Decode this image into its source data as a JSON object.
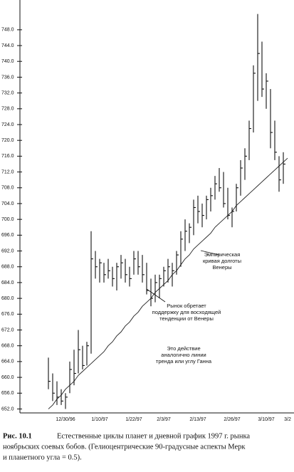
{
  "chart_data": {
    "type": "ohlc",
    "categories": [
      null,
      null,
      null,
      null,
      "12/30/96",
      null,
      null,
      null,
      null,
      null,
      null,
      null,
      "1/10/97",
      null,
      null,
      null,
      null,
      null,
      null,
      null,
      "1/22/97",
      null,
      null,
      null,
      null,
      null,
      null,
      "2/3/97",
      null,
      null,
      null,
      null,
      null,
      null,
      null,
      "2/13/97",
      null,
      null,
      null,
      null,
      null,
      null,
      null,
      "2/26/97",
      null,
      null,
      null,
      null,
      null,
      null,
      null,
      "3/10/97",
      null,
      null,
      null,
      null,
      "3/2"
    ],
    "high": [
      665,
      661,
      659,
      657,
      656,
      664,
      667,
      672,
      668,
      669,
      697,
      692,
      690,
      689,
      690,
      688,
      689,
      691,
      690,
      688,
      692,
      692,
      691,
      689,
      685,
      686,
      686,
      688,
      690,
      689,
      692,
      697,
      700,
      699,
      705,
      706,
      704,
      706,
      708,
      711,
      713,
      712,
      708,
      703,
      709,
      715,
      718,
      725,
      739,
      752,
      745,
      737,
      733,
      725,
      716,
      717,
      null
    ],
    "low": [
      657,
      654,
      653,
      653,
      652,
      656,
      658,
      661,
      662,
      663,
      666,
      685,
      684,
      684,
      685,
      683,
      682,
      685,
      684,
      683,
      686,
      686,
      684,
      681,
      678,
      679,
      680,
      683,
      684,
      683,
      686,
      688,
      692,
      694,
      696,
      699,
      698,
      700,
      702,
      705,
      707,
      703,
      700,
      698,
      702,
      706,
      710,
      715,
      722,
      730,
      731,
      728,
      718,
      715,
      707,
      709,
      null
    ],
    "close": [
      659,
      656,
      655,
      654,
      655,
      662,
      661,
      667,
      663,
      668,
      690,
      688,
      689,
      686,
      687,
      685,
      688,
      689,
      686,
      685,
      690,
      688,
      686,
      682,
      680,
      684,
      685,
      687,
      688,
      687,
      691,
      695,
      697,
      698,
      703,
      702,
      701,
      705,
      706,
      709,
      708,
      704,
      701,
      702,
      708,
      713,
      716,
      723,
      737,
      742,
      733,
      735,
      722,
      717,
      710,
      714,
      null
    ],
    "curve": [
      652,
      653,
      654.5,
      655.5,
      657,
      658,
      659,
      660.5,
      661.5,
      662.5,
      663.5,
      664.5,
      665.5,
      666.5,
      668,
      669,
      670.5,
      671.5,
      673,
      674,
      675.5,
      676.5,
      678,
      679,
      680,
      681.5,
      682.5,
      683.5,
      684.5,
      686,
      687,
      688.5,
      690,
      691,
      692.5,
      693.5,
      694.5,
      695.5,
      696.5,
      698,
      699,
      700,
      701,
      702,
      703.5,
      704.5,
      705.5,
      706.5,
      707.5,
      708.5,
      709.5,
      710.5,
      711.5,
      712.5,
      713.5,
      714.5,
      715.5
    ],
    "color": "#111111",
    "ylim": [
      651,
      755
    ],
    "yticks": [
      {
        "value": 652,
        "label": "652.0"
      },
      {
        "value": 656,
        "label": "656.0"
      },
      {
        "value": 660,
        "label": "660.0"
      },
      {
        "value": 664,
        "label": "664.0"
      },
      {
        "value": 668,
        "label": "668.0"
      },
      {
        "value": 672,
        "label": "672.0"
      },
      {
        "value": 676,
        "label": "676.0"
      },
      {
        "value": 680,
        "label": "680.0"
      },
      {
        "value": 684,
        "label": "684.0"
      },
      {
        "value": 688,
        "label": "688.0"
      },
      {
        "value": 692,
        "label": "692.0"
      },
      {
        "value": 696,
        "label": "696.0"
      },
      {
        "value": 700,
        "label": "700.0"
      },
      {
        "value": 704,
        "label": "704.0"
      },
      {
        "value": 708,
        "label": "708.0"
      },
      {
        "value": 712,
        "label": "712.0"
      },
      {
        "value": 716,
        "label": "716.0"
      },
      {
        "value": 720,
        "label": "720.0"
      },
      {
        "value": 724,
        "label": "724.0"
      },
      {
        "value": 728,
        "label": "728.0"
      },
      {
        "value": 732,
        "label": "732.0"
      },
      {
        "value": 736,
        "label": "736.0"
      },
      {
        "value": 740,
        "label": "740.0"
      },
      {
        "value": 744,
        "label": "744.0"
      },
      {
        "value": 748,
        "label": "748.0"
      }
    ],
    "annotations": [
      {
        "lines": [
          "Эмпирическая",
          "кривая долготы",
          "Венеры"
        ]
      },
      {
        "lines": [
          "Рынок обретает",
          "поддержку для восходящей",
          "тенденции от Венеры"
        ]
      },
      {
        "lines": [
          "Это действие",
          "аналогично линии",
          "тренда или углу Ганна"
        ]
      }
    ],
    "caption_label": "Рис. 10.1",
    "caption_lines": [
      "Естественные циклы планет и дневной график 1997 г. рынка",
      "ноябрьских соевых бобов. (Гелиоцентрические 90-градусные аспекты Мерк",
      "и планетного угла = 0.5)."
    ]
  }
}
